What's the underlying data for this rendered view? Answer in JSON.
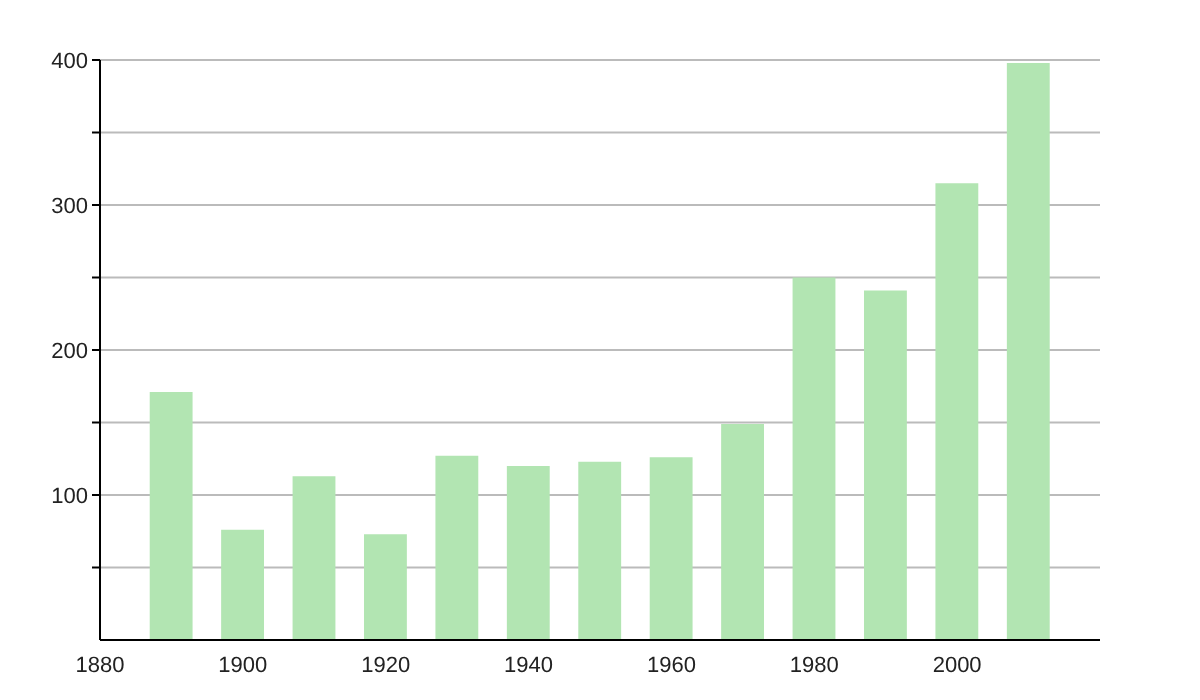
{
  "chart_data": {
    "type": "bar",
    "x": [
      1890,
      1900,
      1910,
      1920,
      1930,
      1940,
      1950,
      1960,
      1970,
      1980,
      1990,
      2000,
      2010
    ],
    "values": [
      171,
      76,
      113,
      73,
      127,
      120,
      123,
      126,
      149,
      250,
      241,
      315,
      398
    ],
    "color": "#b2e5b2",
    "xlim": [
      1880,
      2020
    ],
    "xticks": [
      1880,
      1900,
      1920,
      1940,
      1960,
      1980,
      2000
    ],
    "ylim": [
      0,
      400
    ],
    "yticks": [
      {
        "value": 50,
        "label": null
      },
      100,
      {
        "value": 150,
        "label": null
      },
      200,
      {
        "value": 250,
        "label": null
      },
      300,
      {
        "value": 350,
        "label": null
      },
      400
    ],
    "grid": "y"
  }
}
